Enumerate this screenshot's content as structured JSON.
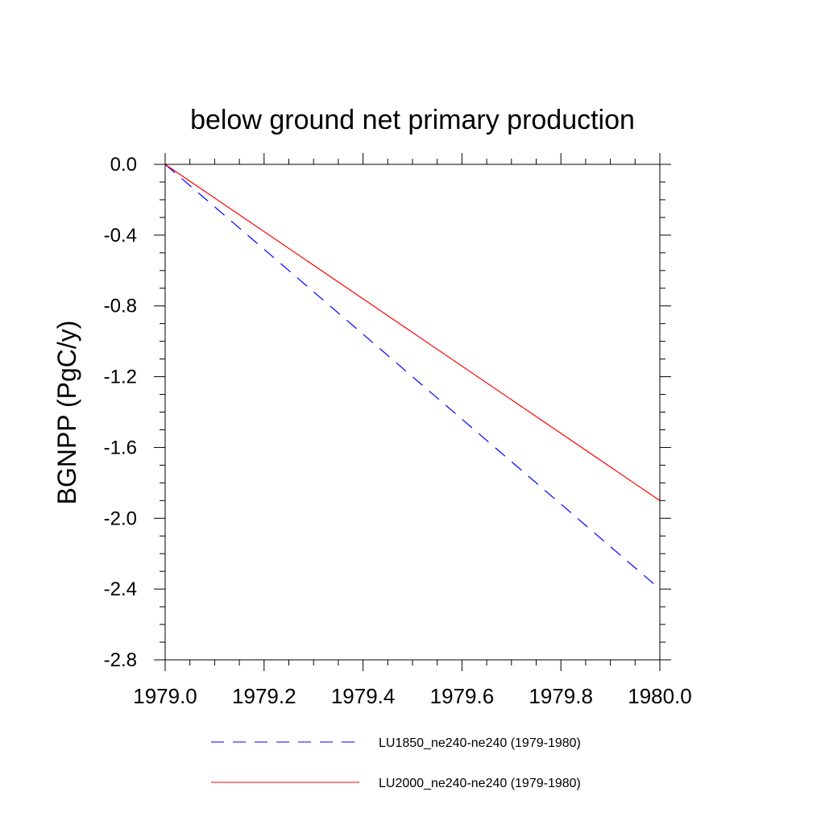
{
  "chart_data": {
    "type": "line",
    "title": "below ground net primary production",
    "xlabel": "",
    "ylabel": "BGNPP  (PgC/y)",
    "xlim": [
      1979.0,
      1980.0
    ],
    "ylim": [
      -2.8,
      0.0
    ],
    "x_ticks": [
      "1979.0",
      "1979.2",
      "1979.4",
      "1979.6",
      "1979.8",
      "1980.0"
    ],
    "y_ticks": [
      "0.0",
      "-0.4",
      "-0.8",
      "-1.2",
      "-1.6",
      "-2.0",
      "-2.4",
      "-2.8"
    ],
    "grid": false,
    "legend_position": "bottom",
    "series": [
      {
        "name": "LU1850_ne240-ne240 (1979-1980)",
        "color": "#0000ff",
        "line_style": "dashed",
        "x": [
          1979.0,
          1980.0
        ],
        "y": [
          0.0,
          -2.4
        ]
      },
      {
        "name": "LU2000_ne240-ne240 (1979-1980)",
        "color": "#ff0000",
        "line_style": "solid",
        "x": [
          1979.0,
          1980.0
        ],
        "y": [
          0.0,
          -1.9
        ]
      }
    ]
  }
}
